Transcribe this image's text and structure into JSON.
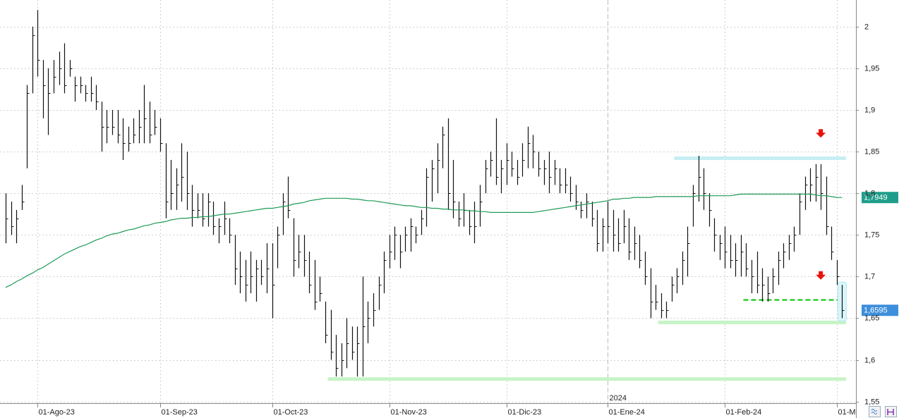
{
  "chart_data": {
    "type": "ohlc",
    "ylim": [
      1.548,
      2.032
    ],
    "yticks": [
      {
        "value": 1.55,
        "label": "1,55"
      },
      {
        "value": 1.6,
        "label": "1,6"
      },
      {
        "value": 1.65,
        "label": "1,65"
      },
      {
        "value": 1.7,
        "label": "1,7"
      },
      {
        "value": 1.75,
        "label": "1,75"
      },
      {
        "value": 1.8,
        "label": "1,8"
      },
      {
        "value": 1.85,
        "label": "1,85"
      },
      {
        "value": 1.9,
        "label": "1,9"
      },
      {
        "value": 1.95,
        "label": "1,95"
      },
      {
        "value": 2,
        "label": "2"
      }
    ],
    "grid": true,
    "bar_color": "#111111",
    "categories": [
      null,
      null,
      null,
      null,
      null,
      null,
      "01-Ago-23",
      null,
      null,
      null,
      null,
      null,
      null,
      null,
      null,
      null,
      null,
      null,
      null,
      null,
      null,
      null,
      null,
      null,
      null,
      null,
      null,
      null,
      null,
      "01-Sep-23",
      null,
      null,
      null,
      null,
      null,
      null,
      null,
      null,
      null,
      null,
      null,
      null,
      null,
      null,
      null,
      null,
      null,
      null,
      null,
      null,
      "01-Oct-23",
      null,
      null,
      null,
      null,
      null,
      null,
      null,
      null,
      null,
      null,
      null,
      null,
      null,
      null,
      null,
      null,
      null,
      null,
      null,
      null,
      null,
      "01-Nov-23",
      null,
      null,
      null,
      null,
      null,
      null,
      null,
      null,
      null,
      null,
      null,
      null,
      null,
      null,
      null,
      null,
      null,
      null,
      null,
      null,
      null,
      "01-Dic-23",
      null,
      null,
      null,
      null,
      null,
      null,
      null,
      null,
      null,
      null,
      null,
      null,
      null,
      null,
      null,
      null,
      null,
      null,
      "01-Ene-24",
      null,
      null,
      null,
      null,
      null,
      null,
      null,
      null,
      null,
      null,
      null,
      null,
      null,
      null,
      null,
      null,
      null,
      null,
      null,
      null,
      null,
      "01-Feb-24",
      null,
      null,
      null,
      null,
      null,
      null,
      null,
      null,
      null,
      null,
      null,
      null,
      null,
      null,
      null,
      null,
      null,
      null,
      null,
      null,
      "01-M",
      null
    ],
    "high": [
      1.8,
      1.79,
      1.78,
      1.81,
      1.93,
      2.0,
      2.02,
      1.96,
      1.95,
      1.96,
      1.97,
      1.98,
      1.96,
      1.94,
      1.94,
      1.93,
      1.94,
      1.93,
      1.91,
      1.9,
      1.9,
      1.9,
      1.89,
      1.88,
      1.89,
      1.9,
      1.93,
      1.91,
      1.9,
      1.89,
      1.86,
      1.84,
      1.83,
      1.86,
      1.85,
      1.81,
      1.8,
      1.8,
      1.8,
      1.79,
      1.77,
      1.79,
      1.77,
      1.75,
      1.73,
      1.72,
      1.73,
      1.72,
      1.72,
      1.74,
      1.74,
      1.76,
      1.8,
      1.82,
      1.77,
      1.75,
      1.75,
      1.73,
      1.72,
      1.7,
      1.67,
      1.66,
      1.63,
      1.62,
      1.65,
      1.64,
      1.64,
      1.7,
      1.67,
      1.68,
      1.7,
      1.73,
      1.75,
      1.76,
      1.75,
      1.76,
      1.77,
      1.76,
      1.78,
      1.83,
      1.84,
      1.86,
      1.88,
      1.89,
      1.84,
      1.79,
      1.8,
      1.78,
      1.79,
      1.81,
      1.84,
      1.85,
      1.89,
      1.84,
      1.86,
      1.85,
      1.84,
      1.86,
      1.88,
      1.87,
      1.85,
      1.84,
      1.85,
      1.84,
      1.83,
      1.83,
      1.82,
      1.81,
      1.79,
      1.8,
      1.79,
      1.78,
      1.77,
      1.79,
      1.78,
      1.77,
      1.78,
      1.77,
      1.76,
      1.75,
      1.73,
      1.71,
      1.69,
      1.68,
      1.67,
      1.7,
      1.71,
      1.73,
      1.76,
      1.81,
      1.845,
      1.83,
      1.8,
      1.77,
      1.75,
      1.76,
      1.75,
      1.74,
      1.75,
      1.74,
      1.72,
      1.73,
      1.71,
      1.7,
      1.71,
      1.73,
      1.74,
      1.75,
      1.76,
      1.8,
      1.82,
      1.83,
      1.835,
      1.835,
      1.82,
      1.76,
      1.72,
      1.69
    ],
    "low": [
      1.74,
      1.75,
      1.74,
      1.78,
      1.83,
      1.92,
      1.94,
      1.89,
      1.87,
      1.92,
      1.93,
      1.92,
      1.94,
      1.91,
      1.92,
      1.91,
      1.91,
      1.9,
      1.85,
      1.86,
      1.87,
      1.86,
      1.84,
      1.85,
      1.86,
      1.86,
      1.86,
      1.86,
      1.87,
      1.85,
      1.77,
      1.78,
      1.78,
      1.79,
      1.78,
      1.76,
      1.77,
      1.76,
      1.76,
      1.75,
      1.74,
      1.75,
      1.74,
      1.69,
      1.68,
      1.67,
      1.68,
      1.67,
      1.69,
      1.68,
      1.65,
      1.71,
      1.75,
      1.77,
      1.7,
      1.71,
      1.7,
      1.68,
      1.66,
      1.67,
      1.62,
      1.6,
      1.58,
      1.58,
      1.59,
      1.6,
      1.58,
      1.58,
      1.62,
      1.64,
      1.66,
      1.68,
      1.71,
      1.72,
      1.71,
      1.73,
      1.73,
      1.74,
      1.75,
      1.76,
      1.79,
      1.8,
      1.83,
      1.78,
      1.77,
      1.76,
      1.76,
      1.75,
      1.74,
      1.76,
      1.8,
      1.82,
      1.81,
      1.8,
      1.81,
      1.82,
      1.81,
      1.82,
      1.83,
      1.83,
      1.82,
      1.81,
      1.8,
      1.81,
      1.8,
      1.8,
      1.79,
      1.78,
      1.77,
      1.77,
      1.76,
      1.73,
      1.73,
      1.74,
      1.73,
      1.73,
      1.74,
      1.72,
      1.72,
      1.71,
      1.69,
      1.65,
      1.66,
      1.65,
      1.65,
      1.67,
      1.68,
      1.69,
      1.7,
      1.76,
      1.79,
      1.78,
      1.76,
      1.73,
      1.72,
      1.71,
      1.71,
      1.7,
      1.7,
      1.7,
      1.68,
      1.68,
      1.67,
      1.67,
      1.68,
      1.69,
      1.71,
      1.72,
      1.73,
      1.75,
      1.78,
      1.79,
      1.79,
      1.78,
      1.75,
      1.72,
      1.69,
      1.65
    ],
    "close": [
      1.77,
      1.76,
      1.77,
      1.79,
      1.92,
      1.99,
      1.96,
      1.93,
      1.92,
      1.94,
      1.95,
      1.93,
      1.95,
      1.93,
      1.93,
      1.92,
      1.92,
      1.91,
      1.88,
      1.88,
      1.88,
      1.87,
      1.86,
      1.86,
      1.87,
      1.88,
      1.89,
      1.87,
      1.88,
      1.86,
      1.79,
      1.8,
      1.81,
      1.82,
      1.8,
      1.78,
      1.78,
      1.77,
      1.79,
      1.76,
      1.76,
      1.77,
      1.75,
      1.71,
      1.7,
      1.69,
      1.7,
      1.71,
      1.7,
      1.71,
      1.69,
      1.75,
      1.79,
      1.78,
      1.72,
      1.73,
      1.72,
      1.69,
      1.67,
      1.68,
      1.63,
      1.61,
      1.59,
      1.6,
      1.62,
      1.61,
      1.62,
      1.64,
      1.65,
      1.66,
      1.69,
      1.72,
      1.73,
      1.75,
      1.73,
      1.75,
      1.76,
      1.75,
      1.77,
      1.82,
      1.83,
      1.84,
      1.87,
      1.8,
      1.79,
      1.77,
      1.78,
      1.76,
      1.76,
      1.79,
      1.83,
      1.84,
      1.82,
      1.83,
      1.84,
      1.83,
      1.82,
      1.84,
      1.86,
      1.85,
      1.83,
      1.83,
      1.82,
      1.83,
      1.81,
      1.81,
      1.8,
      1.79,
      1.78,
      1.79,
      1.77,
      1.74,
      1.76,
      1.76,
      1.75,
      1.74,
      1.76,
      1.73,
      1.74,
      1.72,
      1.7,
      1.67,
      1.67,
      1.66,
      1.66,
      1.69,
      1.7,
      1.72,
      1.74,
      1.8,
      1.82,
      1.8,
      1.78,
      1.75,
      1.74,
      1.73,
      1.72,
      1.72,
      1.73,
      1.71,
      1.7,
      1.69,
      1.69,
      1.68,
      1.7,
      1.72,
      1.73,
      1.74,
      1.75,
      1.79,
      1.81,
      1.81,
      1.82,
      1.8,
      1.76,
      1.73,
      1.7,
      1.6595
    ],
    "ma": {
      "color": "#1f9a57",
      "values": [
        1.687,
        1.69,
        1.694,
        1.697,
        1.701,
        1.704,
        1.708,
        1.711,
        1.715,
        1.719,
        1.723,
        1.727,
        1.73,
        1.733,
        1.736,
        1.738,
        1.741,
        1.744,
        1.746,
        1.749,
        1.751,
        1.752,
        1.754,
        1.756,
        1.757,
        1.759,
        1.761,
        1.762,
        1.764,
        1.765,
        1.766,
        1.768,
        1.769,
        1.77,
        1.77,
        1.771,
        1.771,
        1.772,
        1.772,
        1.773,
        1.774,
        1.775,
        1.775,
        1.776,
        1.777,
        1.778,
        1.779,
        1.78,
        1.781,
        1.782,
        1.782,
        1.783,
        1.784,
        1.785,
        1.787,
        1.788,
        1.789,
        1.791,
        1.792,
        1.793,
        1.794,
        1.794,
        1.794,
        1.794,
        1.794,
        1.793,
        1.793,
        1.792,
        1.791,
        1.791,
        1.79,
        1.789,
        1.788,
        1.787,
        1.786,
        1.785,
        1.785,
        1.784,
        1.783,
        1.783,
        1.782,
        1.782,
        1.781,
        1.781,
        1.78,
        1.78,
        1.78,
        1.779,
        1.779,
        1.778,
        1.778,
        1.777,
        1.777,
        1.777,
        1.777,
        1.777,
        1.777,
        1.777,
        1.777,
        1.777,
        1.778,
        1.779,
        1.78,
        1.781,
        1.782,
        1.783,
        1.784,
        1.785,
        1.786,
        1.787,
        1.788,
        1.789,
        1.79,
        1.791,
        1.793,
        1.793,
        1.794,
        1.794,
        1.795,
        1.795,
        1.795,
        1.795,
        1.796,
        1.796,
        1.796,
        1.796,
        1.796,
        1.796,
        1.796,
        1.796,
        1.797,
        1.797,
        1.797,
        1.797,
        1.797,
        1.797,
        1.797,
        1.798,
        1.799,
        1.799,
        1.799,
        1.799,
        1.799,
        1.799,
        1.799,
        1.799,
        1.799,
        1.799,
        1.799,
        1.799,
        1.799,
        1.799,
        1.798,
        1.797,
        1.797,
        1.796,
        1.795,
        1.7949
      ]
    },
    "lines": [
      {
        "value": 1.842,
        "from": 126,
        "to": 158,
        "color": "#c6eef3",
        "dashed": false
      },
      {
        "value": 1.645,
        "from": 123,
        "to": 158,
        "color": "#c6f3c6",
        "dashed": false
      },
      {
        "value": 1.577,
        "from": 61,
        "to": 158,
        "color": "#c6f3c6",
        "dashed": false
      },
      {
        "value": 1.672,
        "from": 139,
        "to": 158,
        "color": "#2ecc2e",
        "dashed": true
      }
    ],
    "arrows": [
      {
        "index": 153,
        "value": 1.871,
        "color": "#e8120c"
      },
      {
        "index": 153,
        "value": 1.7005,
        "color": "#e8120c"
      }
    ],
    "price_tags": [
      {
        "value": 1.7949,
        "label": "1,7949",
        "color": "#1e9e8a"
      },
      {
        "value": 1.6595,
        "label": "1,6595",
        "color": "#3d8fdc"
      }
    ],
    "year_marker": {
      "label": "2024",
      "category": "01-Ene-24"
    }
  }
}
